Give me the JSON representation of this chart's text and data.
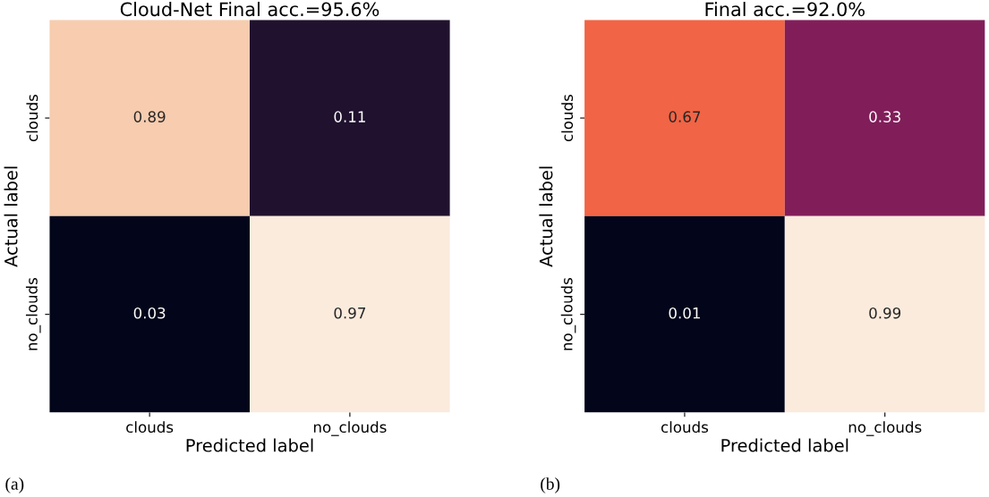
{
  "chart_data": [
    {
      "type": "heatmap",
      "title": "Cloud-Net Final acc.=95.6%",
      "xlabel": "Predicted label",
      "ylabel": "Actual label",
      "categories": [
        "clouds",
        "no_clouds"
      ],
      "y_categories": [
        "clouds",
        "no_clouds"
      ],
      "cells": [
        [
          0.89,
          0.11
        ],
        [
          0.03,
          0.97
        ]
      ],
      "data_labels": true,
      "annotations": [
        "(a)"
      ]
    },
    {
      "type": "heatmap",
      "title": "Final acc.=92.0%",
      "xlabel": "Predicted label",
      "ylabel": "Actual label",
      "categories": [
        "clouds",
        "no_clouds"
      ],
      "y_categories": [
        "clouds",
        "no_clouds"
      ],
      "cells": [
        [
          0.67,
          0.33
        ],
        [
          0.01,
          0.99
        ]
      ],
      "data_labels": true,
      "annotations": [
        "(b)"
      ]
    }
  ]
}
